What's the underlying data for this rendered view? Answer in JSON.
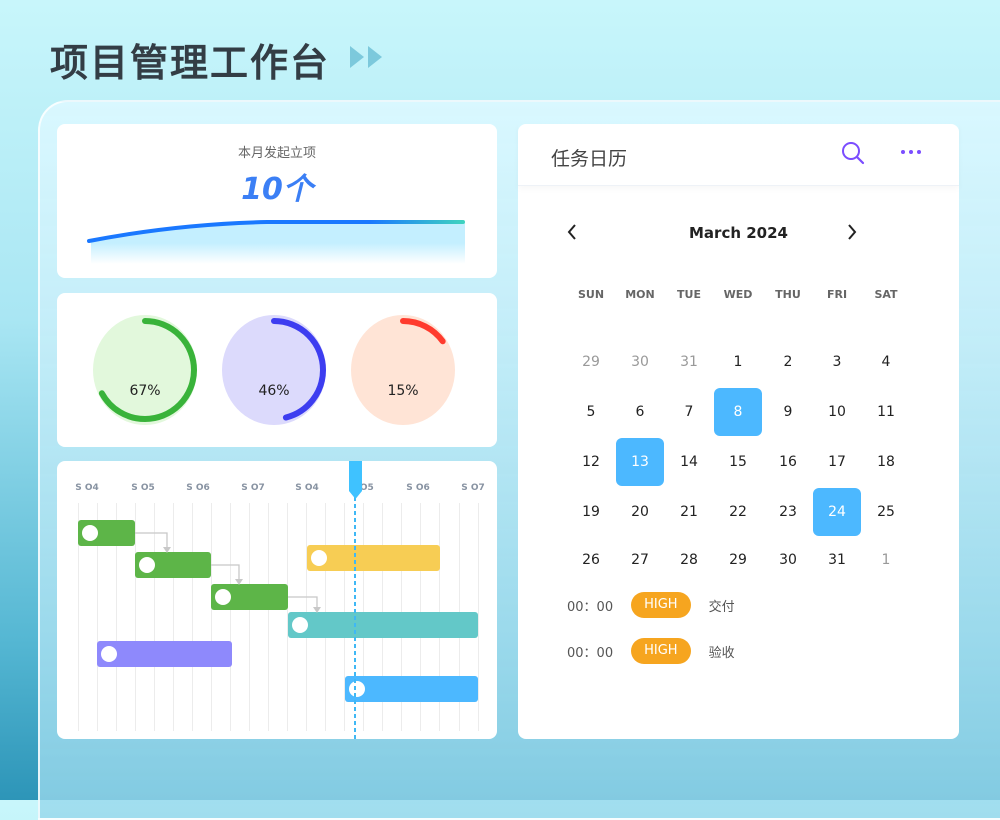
{
  "header": {
    "title": "项目管理工作台"
  },
  "stat": {
    "label": "本月发起立项",
    "value": "10个"
  },
  "rings": [
    {
      "label": "67%",
      "value": 0.67,
      "color": "#39b33a",
      "bg": "#e2f8dc"
    },
    {
      "label": "46%",
      "value": 0.46,
      "color": "#3d3df0",
      "bg": "#dcdafc"
    },
    {
      "label": "15%",
      "value": 0.15,
      "color": "#ff3b2e",
      "bg": "#ffe4d6"
    }
  ],
  "gantt": {
    "labels": [
      "S O4",
      "S O5",
      "S O6",
      "S O7",
      "S O4",
      "S O5",
      "S O6",
      "S O7"
    ],
    "colors": {
      "green": "#5db548",
      "teal": "#63c8c8",
      "purple": "#8e89fc",
      "yellow": "#f7cd54",
      "blue": "#4cb8ff"
    }
  },
  "calendar": {
    "title": "任务日历",
    "month": "March 2024",
    "weekdays": [
      "SUN",
      "MON",
      "TUE",
      "WED",
      "THU",
      "FRI",
      "SAT"
    ],
    "days": [
      [
        "29",
        "30",
        "31",
        "1",
        "2",
        "3",
        "4"
      ],
      [
        "5",
        "6",
        "7",
        "8",
        "9",
        "10",
        "11"
      ],
      [
        "12",
        "13",
        "14",
        "15",
        "16",
        "17",
        "18"
      ],
      [
        "19",
        "20",
        "21",
        "22",
        "23",
        "24",
        "25"
      ],
      [
        "26",
        "27",
        "28",
        "29",
        "30",
        "31",
        "1"
      ]
    ],
    "selected": [
      "8",
      "13",
      "24"
    ],
    "events": [
      {
        "time": "00：00",
        "priority": "HIGH",
        "name": "交付"
      },
      {
        "time": "00：00",
        "priority": "HIGH",
        "name": "验收"
      }
    ]
  }
}
